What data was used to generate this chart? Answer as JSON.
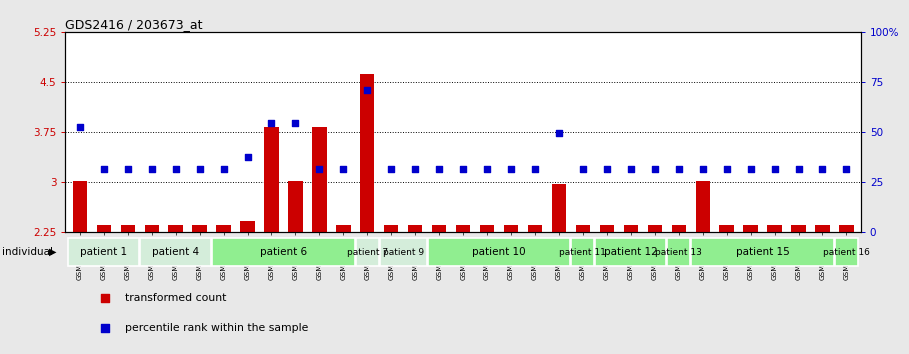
{
  "title": "GDS2416 / 203673_at",
  "samples": [
    "GSM135233",
    "GSM135234",
    "GSM135260",
    "GSM135232",
    "GSM135235",
    "GSM135236",
    "GSM135231",
    "GSM135242",
    "GSM135243",
    "GSM135251",
    "GSM135252",
    "GSM135244",
    "GSM135259",
    "GSM135254",
    "GSM135255",
    "GSM135261",
    "GSM135229",
    "GSM135230",
    "GSM135245",
    "GSM135246",
    "GSM135258",
    "GSM135247",
    "GSM135250",
    "GSM135237",
    "GSM135238",
    "GSM135239",
    "GSM135256",
    "GSM135257",
    "GSM135240",
    "GSM135248",
    "GSM135253",
    "GSM135241",
    "GSM135249"
  ],
  "bar_values": [
    3.01,
    2.35,
    2.35,
    2.35,
    2.35,
    2.35,
    2.35,
    2.42,
    3.82,
    3.01,
    3.82,
    2.35,
    4.62,
    2.35,
    2.35,
    2.35,
    2.35,
    2.35,
    2.35,
    2.35,
    2.97,
    2.35,
    2.35,
    2.35,
    2.35,
    2.35,
    3.01,
    2.35,
    2.35,
    2.35,
    2.35,
    2.35,
    2.35
  ],
  "percentile_values": [
    3.82,
    3.2,
    3.2,
    3.2,
    3.2,
    3.2,
    3.2,
    3.38,
    3.88,
    3.88,
    3.2,
    3.2,
    4.38,
    3.2,
    3.2,
    3.2,
    3.2,
    3.2,
    3.2,
    3.2,
    3.73,
    3.2,
    3.2,
    3.2,
    3.2,
    3.2,
    3.2,
    3.2,
    3.2,
    3.2,
    3.2,
    3.2,
    3.2
  ],
  "bar_color": "#cc0000",
  "percentile_color": "#0000cc",
  "ymin": 2.25,
  "ymax": 5.25,
  "yticks": [
    2.25,
    3.0,
    3.75,
    4.5,
    5.25
  ],
  "ytick_labels": [
    "2.25",
    "3",
    "3.75",
    "4.5",
    "5.25"
  ],
  "right_yticks": [
    0,
    25,
    50,
    75,
    100
  ],
  "right_ytick_labels": [
    "0",
    "25",
    "50",
    "75",
    "100%"
  ],
  "hlines": [
    3.0,
    3.75,
    4.5
  ],
  "patients": [
    {
      "label": "patient 1",
      "start": 0,
      "end": 2,
      "color": "#d4edda"
    },
    {
      "label": "patient 4",
      "start": 3,
      "end": 5,
      "color": "#d4edda"
    },
    {
      "label": "patient 6",
      "start": 6,
      "end": 11,
      "color": "#90ee90"
    },
    {
      "label": "patient 7",
      "start": 12,
      "end": 12,
      "color": "#d4edda"
    },
    {
      "label": "patient 9",
      "start": 13,
      "end": 14,
      "color": "#d4edda"
    },
    {
      "label": "patient 10",
      "start": 15,
      "end": 20,
      "color": "#90ee90"
    },
    {
      "label": "patient 11",
      "start": 21,
      "end": 21,
      "color": "#90ee90"
    },
    {
      "label": "patient 12",
      "start": 22,
      "end": 24,
      "color": "#90ee90"
    },
    {
      "label": "patient 13",
      "start": 25,
      "end": 25,
      "color": "#90ee90"
    },
    {
      "label": "patient 15",
      "start": 26,
      "end": 31,
      "color": "#90ee90"
    },
    {
      "label": "patient 16",
      "start": 32,
      "end": 32,
      "color": "#90ee90"
    }
  ],
  "background_color": "#e8e8e8",
  "plot_bg_color": "#ffffff",
  "legend_items": [
    {
      "label": "transformed count",
      "color": "#cc0000"
    },
    {
      "label": "percentile rank within the sample",
      "color": "#0000cc"
    }
  ]
}
